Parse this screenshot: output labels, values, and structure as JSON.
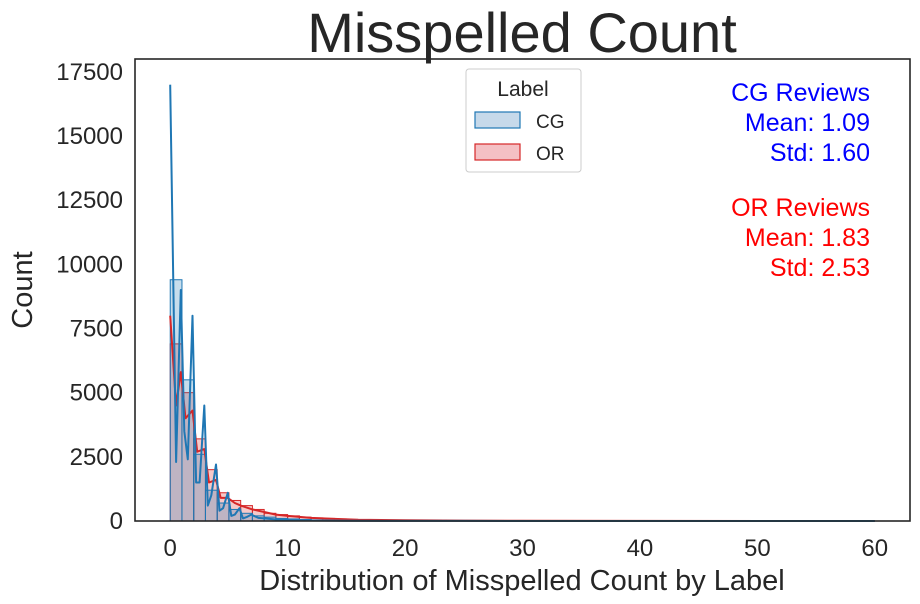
{
  "chart_data": {
    "type": "histogram",
    "title": "Misspelled Count",
    "xlabel": "Distribution of Misspelled Count by Label",
    "ylabel": "Count",
    "xlim": [
      -3,
      63
    ],
    "ylim": [
      0,
      18000
    ],
    "xticks": [
      0,
      10,
      20,
      30,
      40,
      50,
      60
    ],
    "yticks": [
      0,
      2500,
      5000,
      7500,
      10000,
      12500,
      15000,
      17500
    ],
    "bin_edges": [
      0,
      1,
      2,
      3,
      4,
      5,
      6,
      7,
      8,
      9,
      10,
      11,
      12,
      13,
      14,
      15,
      16,
      17,
      18,
      19,
      20,
      22,
      24,
      26,
      28,
      30
    ],
    "grid": false,
    "legend": {
      "title": "Label",
      "position": "top-center",
      "entries": [
        {
          "label": "CG",
          "fill": "#c6d9ea",
          "stroke": "#1f77b4"
        },
        {
          "label": "OR",
          "fill": "#f4c0c4",
          "stroke": "#d62728"
        }
      ]
    },
    "series": [
      {
        "name": "CG",
        "color": "#1f77b4",
        "hist_counts": [
          9400,
          5500,
          2600,
          1200,
          700,
          450,
          300,
          200,
          150,
          100,
          80,
          60,
          40,
          30,
          20,
          15,
          10,
          8,
          6,
          5,
          8,
          5,
          3,
          2,
          1
        ],
        "kde_x": [
          0,
          0.5,
          0.9,
          1.2,
          1.5,
          1.9,
          2.2,
          2.5,
          2.9,
          3.2,
          3.5,
          3.9,
          4.2,
          4.5,
          4.9,
          5.2,
          5.5,
          5.9,
          6.2,
          6.5,
          6.9,
          7.5,
          8,
          9,
          10,
          12,
          15,
          20,
          25,
          30,
          40,
          60
        ],
        "kde_y": [
          17000,
          2300,
          9000,
          3500,
          2400,
          8000,
          1500,
          1500,
          4500,
          600,
          1000,
          2200,
          400,
          500,
          1100,
          200,
          250,
          500,
          100,
          150,
          250,
          120,
          100,
          60,
          40,
          20,
          10,
          5,
          2,
          1,
          0,
          0
        ]
      },
      {
        "name": "OR",
        "color": "#d62728",
        "hist_counts": [
          6900,
          5000,
          3200,
          2000,
          1100,
          800,
          600,
          450,
          300,
          250,
          200,
          150,
          120,
          100,
          80,
          60,
          50,
          40,
          30,
          25,
          30,
          20,
          15,
          10,
          5
        ],
        "kde_x": [
          0,
          0.5,
          0.9,
          1.3,
          1.9,
          2.3,
          2.9,
          3.3,
          3.9,
          4.3,
          4.9,
          5.5,
          6,
          7,
          8,
          9,
          10,
          12,
          14,
          16,
          20,
          25,
          30,
          40,
          60
        ],
        "kde_y": [
          8000,
          4500,
          5800,
          4000,
          4300,
          2700,
          2800,
          1500,
          1600,
          900,
          900,
          700,
          600,
          450,
          350,
          250,
          200,
          120,
          80,
          50,
          30,
          15,
          8,
          2,
          0
        ]
      }
    ],
    "annotations": [
      {
        "lines": [
          "CG Reviews",
          "Mean: 1.09",
          "Std: 1.60"
        ],
        "color": "#0000ff"
      },
      {
        "lines": [
          "OR Reviews",
          "Mean: 1.83",
          "Std: 2.53"
        ],
        "color": "#ff0000"
      }
    ]
  }
}
